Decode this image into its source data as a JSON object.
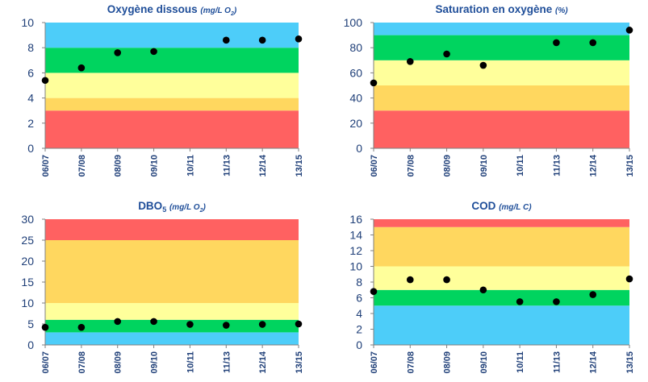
{
  "figure": {
    "charts_order": [
      "oxygene_dissous",
      "saturation",
      "dbo5",
      "cod"
    ]
  },
  "chart_data": [
    {
      "id": "oxygene_dissous",
      "type": "scatter",
      "title": "Oxygène dissous",
      "title_unit": "(mg/L O",
      "title_unit_sub": "2",
      "title_unit_close": ")",
      "title_sub": "",
      "x": [
        "06/07",
        "07/08",
        "08/09",
        "09/10",
        "10/11",
        "11/13",
        "12/14",
        "13/15"
      ],
      "ylim": [
        0,
        10
      ],
      "yticks": [
        0,
        2,
        4,
        6,
        8,
        10
      ],
      "bands": [
        {
          "from": 0,
          "to": 3,
          "color": "#ff6161"
        },
        {
          "from": 3,
          "to": 4,
          "color": "#ffd75f"
        },
        {
          "from": 4,
          "to": 6,
          "color": "#ffff9b"
        },
        {
          "from": 6,
          "to": 8,
          "color": "#00d45f"
        },
        {
          "from": 8,
          "to": 10,
          "color": "#4dcdf9"
        }
      ],
      "series": [
        {
          "points": [
            {
              "x": "06/07",
              "y": 5.4
            },
            {
              "x": "07/08",
              "y": 6.4
            },
            {
              "x": "08/09",
              "y": 7.6
            },
            {
              "x": "09/10",
              "y": 7.7
            },
            {
              "x": "11/13",
              "y": 8.6
            },
            {
              "x": "12/14",
              "y": 8.6
            },
            {
              "x": "13/15",
              "y": 8.7
            }
          ]
        }
      ]
    },
    {
      "id": "saturation",
      "type": "scatter",
      "title": "Saturation en oxygène",
      "title_unit": "(%)",
      "title_unit_sub": "",
      "title_unit_close": "",
      "title_sub": "",
      "x": [
        "06/07",
        "07/08",
        "08/09",
        "09/10",
        "10/11",
        "11/13",
        "12/14",
        "13/15"
      ],
      "ylim": [
        0,
        100
      ],
      "yticks": [
        0,
        20,
        40,
        60,
        80,
        100
      ],
      "bands": [
        {
          "from": 0,
          "to": 30,
          "color": "#ff6161"
        },
        {
          "from": 30,
          "to": 50,
          "color": "#ffd75f"
        },
        {
          "from": 50,
          "to": 70,
          "color": "#ffff9b"
        },
        {
          "from": 70,
          "to": 90,
          "color": "#00d45f"
        },
        {
          "from": 90,
          "to": 100,
          "color": "#4dcdf9"
        }
      ],
      "series": [
        {
          "points": [
            {
              "x": "06/07",
              "y": 52
            },
            {
              "x": "07/08",
              "y": 69
            },
            {
              "x": "08/09",
              "y": 75
            },
            {
              "x": "09/10",
              "y": 66
            },
            {
              "x": "11/13",
              "y": 84
            },
            {
              "x": "12/14",
              "y": 84
            },
            {
              "x": "13/15",
              "y": 94
            }
          ]
        }
      ]
    },
    {
      "id": "dbo5",
      "type": "scatter",
      "title": "DBO",
      "title_sub": "5",
      "title_unit": "(mg/L O",
      "title_unit_sub": "2",
      "title_unit_close": ")",
      "x": [
        "06/07",
        "07/08",
        "08/09",
        "09/10",
        "10/11",
        "11/13",
        "12/14",
        "13/15"
      ],
      "ylim": [
        0,
        30
      ],
      "yticks": [
        0,
        5,
        10,
        15,
        20,
        25,
        30
      ],
      "bands": [
        {
          "from": 0,
          "to": 3,
          "color": "#4dcdf9"
        },
        {
          "from": 3,
          "to": 6,
          "color": "#00d45f"
        },
        {
          "from": 6,
          "to": 10,
          "color": "#ffff9b"
        },
        {
          "from": 10,
          "to": 25,
          "color": "#ffd75f"
        },
        {
          "from": 25,
          "to": 30,
          "color": "#ff6161"
        }
      ],
      "series": [
        {
          "points": [
            {
              "x": "06/07",
              "y": 4.2
            },
            {
              "x": "07/08",
              "y": 4.2
            },
            {
              "x": "08/09",
              "y": 5.6
            },
            {
              "x": "09/10",
              "y": 5.6
            },
            {
              "x": "10/11",
              "y": 4.9
            },
            {
              "x": "11/13",
              "y": 4.7
            },
            {
              "x": "12/14",
              "y": 4.9
            },
            {
              "x": "13/15",
              "y": 5.0
            }
          ]
        }
      ]
    },
    {
      "id": "cod",
      "type": "scatter",
      "title": "COD",
      "title_sub": "",
      "title_unit": "(mg/L C)",
      "title_unit_sub": "",
      "title_unit_close": "",
      "x": [
        "06/07",
        "07/08",
        "08/09",
        "09/10",
        "10/11",
        "11/13",
        "12/14",
        "13/15"
      ],
      "ylim": [
        0,
        16
      ],
      "yticks": [
        0,
        2,
        4,
        6,
        8,
        10,
        12,
        14,
        16
      ],
      "bands": [
        {
          "from": 0,
          "to": 5,
          "color": "#4dcdf9"
        },
        {
          "from": 5,
          "to": 7,
          "color": "#00d45f"
        },
        {
          "from": 7,
          "to": 10,
          "color": "#ffff9b"
        },
        {
          "from": 10,
          "to": 15,
          "color": "#ffd75f"
        },
        {
          "from": 15,
          "to": 16,
          "color": "#ff6161"
        }
      ],
      "series": [
        {
          "points": [
            {
              "x": "06/07",
              "y": 6.8
            },
            {
              "x": "07/08",
              "y": 8.3
            },
            {
              "x": "08/09",
              "y": 8.3
            },
            {
              "x": "09/10",
              "y": 7.0
            },
            {
              "x": "10/11",
              "y": 5.5
            },
            {
              "x": "11/13",
              "y": 5.5
            },
            {
              "x": "12/14",
              "y": 6.4
            },
            {
              "x": "13/15",
              "y": 8.4
            }
          ]
        }
      ]
    }
  ]
}
